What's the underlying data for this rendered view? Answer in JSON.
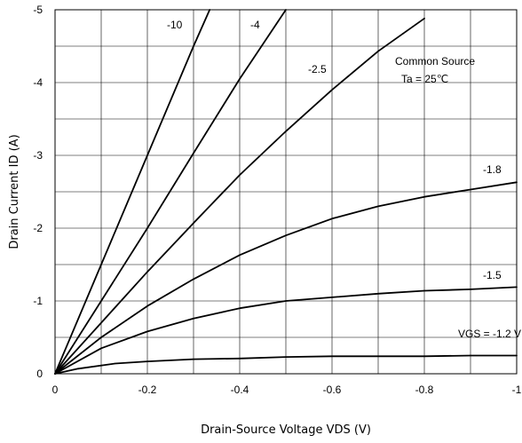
{
  "chart_data": {
    "type": "line",
    "title": "",
    "xlabel": "Drain-Source Voltage VDS (V)",
    "ylabel": "Drain Current  ID (A)",
    "xlim": [
      0,
      -1
    ],
    "ylim": [
      0,
      -5
    ],
    "x_ticks": [
      0,
      -0.2,
      -0.4,
      -0.6,
      -0.8,
      -1
    ],
    "x_tick_labels": [
      "0",
      "-0.2",
      "-0.4",
      "-0.6",
      "-0.8",
      "-1"
    ],
    "y_ticks": [
      0,
      -1,
      -2,
      -3,
      -4,
      -5
    ],
    "y_tick_labels": [
      "0",
      "-1",
      "-2",
      "-3",
      "-4",
      "-5"
    ],
    "x_minor_grid": [
      -0.1,
      -0.3,
      -0.5,
      -0.7,
      -0.9
    ],
    "y_minor_grid": [
      -0.5,
      -1.5,
      -2.5,
      -3.5,
      -4.5
    ],
    "grid": true,
    "annotations": [
      "Common Source",
      "Ta = 25℃"
    ],
    "series": [
      {
        "name": "-10",
        "x": [
          0,
          -0.1,
          -0.2,
          -0.3,
          -0.335
        ],
        "y": [
          0,
          -1.5,
          -3.0,
          -4.5,
          -5.0
        ]
      },
      {
        "name": "-4",
        "x": [
          0,
          -0.1,
          -0.2,
          -0.3,
          -0.4,
          -0.5
        ],
        "y": [
          0,
          -1.0,
          -2.0,
          -3.03,
          -4.05,
          -5.0
        ]
      },
      {
        "name": "-2.5",
        "x": [
          0,
          -0.1,
          -0.2,
          -0.3,
          -0.4,
          -0.5,
          -0.6,
          -0.7,
          -0.8
        ],
        "y": [
          0,
          -0.7,
          -1.4,
          -2.07,
          -2.73,
          -3.33,
          -3.9,
          -4.43,
          -4.88
        ]
      },
      {
        "name": "-1.8",
        "x": [
          0,
          -0.1,
          -0.2,
          -0.3,
          -0.4,
          -0.5,
          -0.6,
          -0.7,
          -0.8,
          -0.9,
          -1.0
        ],
        "y": [
          0,
          -0.5,
          -0.93,
          -1.3,
          -1.63,
          -1.9,
          -2.13,
          -2.3,
          -2.43,
          -2.53,
          -2.63
        ]
      },
      {
        "name": "-1.5",
        "x": [
          0,
          -0.1,
          -0.2,
          -0.3,
          -0.4,
          -0.5,
          -0.6,
          -0.7,
          -0.8,
          -0.9,
          -1.0
        ],
        "y": [
          0,
          -0.35,
          -0.58,
          -0.76,
          -0.9,
          -1.0,
          -1.05,
          -1.1,
          -1.14,
          -1.16,
          -1.19
        ]
      },
      {
        "name": "VGS = -1.2 V",
        "x": [
          0,
          -0.05,
          -0.13,
          -0.2,
          -0.3,
          -0.4,
          -0.5,
          -0.6,
          -0.7,
          -0.8,
          -0.9,
          -1.0
        ],
        "y": [
          0,
          -0.07,
          -0.14,
          -0.17,
          -0.2,
          -0.21,
          -0.23,
          -0.24,
          -0.24,
          -0.24,
          -0.25,
          -0.25
        ]
      }
    ]
  }
}
